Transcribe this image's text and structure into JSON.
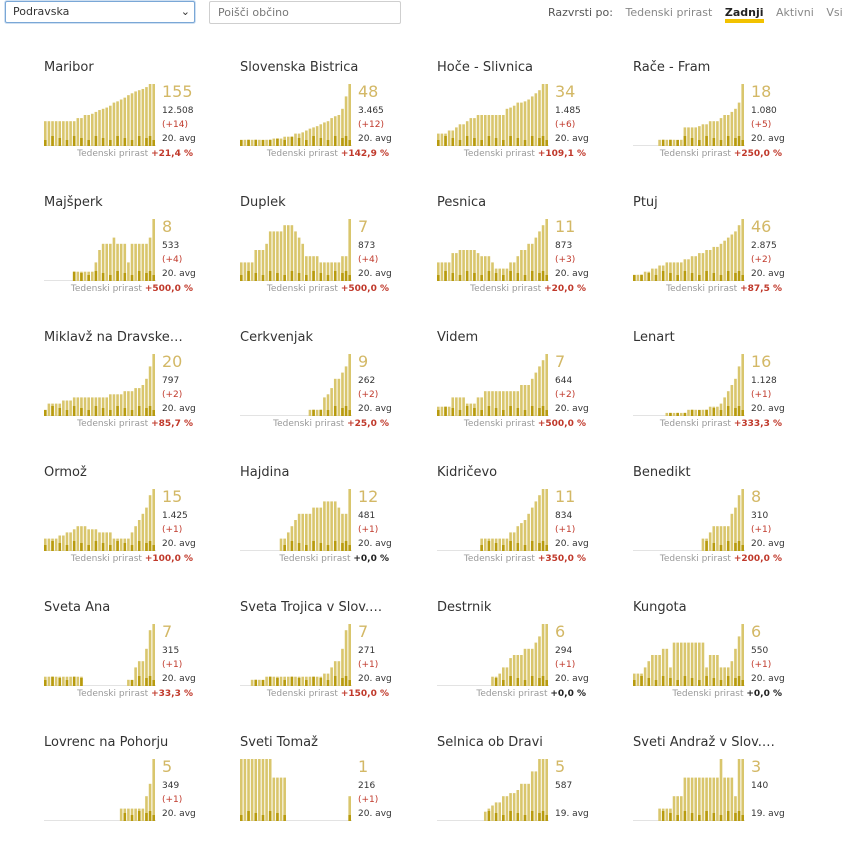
{
  "toolbar": {
    "region_select": "Podravska",
    "search_placeholder": "Poišči občino",
    "sort_label": "Razvrsti po:",
    "sort_options": [
      "Tedenski prirast",
      "Zadnji",
      "Aktivni",
      "Vsi"
    ],
    "active_sort": "Zadnji"
  },
  "growth_label": "Tedenski prirast",
  "colors": {
    "bar_light": "#d9c66d",
    "bar_dark": "#b89b0e",
    "accent": "#f2c200",
    "positive": "#c0392b"
  },
  "chart_data": [
    {
      "type": "bar",
      "title": "Maribor",
      "big": "155",
      "total": "12.508",
      "diff": "(+14)",
      "avg": "20. avg",
      "growth": "+21,4 %",
      "values": [
        40,
        40,
        40,
        40,
        40,
        40,
        40,
        40,
        40,
        45,
        45,
        50,
        50,
        52,
        55,
        58,
        60,
        62,
        65,
        70,
        72,
        75,
        78,
        82,
        85,
        88,
        90,
        92,
        95,
        100,
        100
      ]
    },
    {
      "type": "bar",
      "title": "Slovenska Bistrica",
      "big": "48",
      "total": "3.465",
      "diff": "(+12)",
      "avg": "20. avg",
      "growth": "+142,9 %",
      "values": [
        10,
        10,
        10,
        10,
        10,
        10,
        10,
        10,
        10,
        12,
        12,
        12,
        15,
        15,
        15,
        20,
        20,
        22,
        25,
        28,
        30,
        32,
        35,
        38,
        40,
        45,
        48,
        50,
        60,
        80,
        100
      ]
    },
    {
      "type": "bar",
      "title": "Hoče - Slivnica",
      "big": "34",
      "total": "1.485",
      "diff": "(+6)",
      "avg": "20. avg",
      "growth": "+109,1 %",
      "values": [
        20,
        20,
        20,
        25,
        25,
        30,
        35,
        35,
        40,
        45,
        45,
        50,
        50,
        50,
        50,
        50,
        50,
        50,
        50,
        60,
        62,
        65,
        70,
        70,
        72,
        75,
        80,
        85,
        90,
        100,
        100
      ]
    },
    {
      "type": "bar",
      "title": "Rače - Fram",
      "big": "18",
      "total": "1.080",
      "diff": "(+5)",
      "avg": "20. avg",
      "growth": "+250,0 %",
      "values": [
        0,
        0,
        0,
        0,
        0,
        0,
        0,
        10,
        10,
        10,
        10,
        10,
        10,
        10,
        30,
        30,
        30,
        30,
        32,
        35,
        35,
        40,
        40,
        40,
        45,
        50,
        50,
        55,
        60,
        70,
        100
      ]
    },
    {
      "type": "bar",
      "title": "Majšperk",
      "big": "8",
      "total": "533",
      "diff": "(+4)",
      "avg": "20. avg",
      "growth": "+500,0 %",
      "values": [
        0,
        0,
        0,
        0,
        0,
        0,
        0,
        0,
        15,
        15,
        15,
        15,
        15,
        15,
        30,
        50,
        60,
        60,
        60,
        70,
        60,
        60,
        60,
        30,
        60,
        60,
        60,
        60,
        60,
        70,
        100
      ]
    },
    {
      "type": "bar",
      "title": "Duplek",
      "big": "7",
      "total": "873",
      "diff": "(+4)",
      "avg": "20. avg",
      "growth": "+500,0 %",
      "values": [
        30,
        30,
        30,
        30,
        50,
        50,
        50,
        60,
        80,
        80,
        80,
        80,
        90,
        90,
        90,
        80,
        70,
        60,
        40,
        40,
        40,
        40,
        30,
        30,
        30,
        30,
        30,
        30,
        40,
        40,
        100
      ]
    },
    {
      "type": "bar",
      "title": "Pesnica",
      "big": "11",
      "total": "873",
      "diff": "(+3)",
      "avg": "20. avg",
      "growth": "+20,0 %",
      "values": [
        30,
        30,
        30,
        30,
        45,
        45,
        50,
        50,
        50,
        50,
        50,
        45,
        40,
        40,
        40,
        30,
        20,
        20,
        20,
        20,
        30,
        30,
        40,
        50,
        50,
        60,
        60,
        70,
        80,
        90,
        100
      ]
    },
    {
      "type": "bar",
      "title": "Ptuj",
      "big": "46",
      "total": "2.875",
      "diff": "(+2)",
      "avg": "20. avg",
      "growth": "+87,5 %",
      "values": [
        10,
        10,
        10,
        15,
        15,
        20,
        20,
        25,
        25,
        30,
        30,
        30,
        30,
        30,
        35,
        35,
        40,
        40,
        45,
        45,
        50,
        50,
        55,
        55,
        60,
        65,
        70,
        75,
        80,
        90,
        100
      ]
    },
    {
      "type": "bar",
      "title": "Miklavž na Dravske…",
      "big": "20",
      "total": "797",
      "diff": "(+2)",
      "avg": "20. avg",
      "growth": "+85,7 %",
      "values": [
        10,
        20,
        20,
        20,
        20,
        25,
        25,
        25,
        30,
        30,
        30,
        30,
        30,
        30,
        30,
        30,
        30,
        30,
        35,
        35,
        35,
        35,
        40,
        40,
        40,
        45,
        45,
        50,
        60,
        80,
        100
      ]
    },
    {
      "type": "bar",
      "title": "Cerkvenjak",
      "big": "9",
      "total": "262",
      "diff": "(+2)",
      "avg": "20. avg",
      "growth": "+25,0 %",
      "values": [
        0,
        0,
        0,
        0,
        0,
        0,
        0,
        0,
        0,
        0,
        0,
        0,
        0,
        0,
        0,
        0,
        0,
        0,
        0,
        10,
        10,
        10,
        10,
        30,
        35,
        45,
        60,
        60,
        70,
        80,
        100
      ]
    },
    {
      "type": "bar",
      "title": "Videm",
      "big": "7",
      "total": "644",
      "diff": "(+2)",
      "avg": "20. avg",
      "growth": "+500,0 %",
      "values": [
        15,
        15,
        15,
        15,
        30,
        30,
        30,
        30,
        20,
        20,
        20,
        30,
        30,
        40,
        40,
        40,
        40,
        40,
        40,
        40,
        40,
        40,
        40,
        50,
        50,
        50,
        60,
        70,
        80,
        90,
        100
      ]
    },
    {
      "type": "bar",
      "title": "Lenart",
      "big": "16",
      "total": "1.128",
      "diff": "(+1)",
      "avg": "20. avg",
      "growth": "+333,3 %",
      "values": [
        0,
        0,
        0,
        0,
        0,
        0,
        0,
        0,
        0,
        5,
        5,
        5,
        5,
        5,
        5,
        10,
        10,
        10,
        10,
        10,
        10,
        15,
        15,
        15,
        20,
        30,
        40,
        50,
        60,
        80,
        100
      ]
    },
    {
      "type": "bar",
      "title": "Ormož",
      "big": "15",
      "total": "1.425",
      "diff": "(+1)",
      "avg": "20. avg",
      "growth": "+100,0 %",
      "values": [
        20,
        20,
        20,
        20,
        25,
        25,
        30,
        30,
        35,
        40,
        40,
        40,
        35,
        35,
        35,
        30,
        30,
        30,
        30,
        20,
        20,
        20,
        20,
        20,
        30,
        40,
        50,
        60,
        70,
        90,
        100
      ]
    },
    {
      "type": "bar",
      "title": "Hajdina",
      "big": "12",
      "total": "481",
      "diff": "(+1)",
      "avg": "20. avg",
      "growth": "+0,0 %",
      "values": [
        0,
        0,
        0,
        0,
        0,
        0,
        0,
        0,
        0,
        0,
        0,
        20,
        20,
        30,
        40,
        50,
        60,
        60,
        60,
        60,
        70,
        70,
        70,
        80,
        80,
        80,
        80,
        70,
        60,
        60,
        100
      ]
    },
    {
      "type": "bar",
      "title": "Kidričevo",
      "big": "11",
      "total": "834",
      "diff": "(+1)",
      "avg": "20. avg",
      "growth": "+350,0 %",
      "values": [
        0,
        0,
        0,
        0,
        0,
        0,
        0,
        0,
        0,
        0,
        0,
        0,
        20,
        20,
        20,
        20,
        20,
        20,
        20,
        20,
        30,
        30,
        40,
        45,
        50,
        60,
        70,
        80,
        90,
        100,
        100
      ]
    },
    {
      "type": "bar",
      "title": "Benedikt",
      "big": "8",
      "total": "310",
      "diff": "(+1)",
      "avg": "20. avg",
      "growth": "+200,0 %",
      "values": [
        0,
        0,
        0,
        0,
        0,
        0,
        0,
        0,
        0,
        0,
        0,
        0,
        0,
        0,
        0,
        0,
        0,
        0,
        0,
        20,
        20,
        30,
        40,
        40,
        40,
        40,
        40,
        60,
        70,
        90,
        100
      ]
    },
    {
      "type": "bar",
      "title": "Sveta Ana",
      "big": "7",
      "total": "315",
      "diff": "(+1)",
      "avg": "20. avg",
      "growth": "+33,3 %",
      "values": [
        15,
        15,
        15,
        15,
        15,
        15,
        15,
        15,
        15,
        15,
        15,
        0,
        0,
        0,
        0,
        0,
        0,
        0,
        0,
        0,
        0,
        0,
        0,
        10,
        10,
        30,
        40,
        40,
        60,
        90,
        100
      ]
    },
    {
      "type": "bar",
      "title": "Sveta Trojica v Slov.…",
      "big": "7",
      "total": "271",
      "diff": "(+1)",
      "avg": "20. avg",
      "growth": "+150,0 %",
      "values": [
        0,
        0,
        0,
        10,
        10,
        10,
        10,
        15,
        15,
        15,
        15,
        15,
        15,
        15,
        15,
        15,
        15,
        15,
        15,
        15,
        15,
        15,
        15,
        20,
        20,
        30,
        40,
        40,
        60,
        90,
        100
      ]
    },
    {
      "type": "bar",
      "title": "Destrnik",
      "big": "6",
      "total": "294",
      "diff": "(+1)",
      "avg": "20. avg",
      "growth": "+0,0 %",
      "values": [
        0,
        0,
        0,
        0,
        0,
        0,
        0,
        0,
        0,
        0,
        0,
        0,
        0,
        0,
        0,
        15,
        15,
        20,
        30,
        30,
        45,
        50,
        50,
        50,
        60,
        60,
        60,
        70,
        80,
        100,
        100
      ]
    },
    {
      "type": "bar",
      "title": "Kungota",
      "big": "6",
      "total": "550",
      "diff": "(+1)",
      "avg": "20. avg",
      "growth": "+0,0 %",
      "values": [
        20,
        20,
        20,
        30,
        40,
        50,
        50,
        50,
        60,
        60,
        30,
        70,
        70,
        70,
        70,
        70,
        70,
        70,
        70,
        70,
        30,
        50,
        50,
        50,
        30,
        30,
        30,
        40,
        60,
        80,
        100
      ]
    },
    {
      "type": "bar",
      "title": "Lovrenc na Pohorju",
      "big": "5",
      "total": "349",
      "diff": "(+1)",
      "avg": "20. avg",
      "growth": "",
      "values": [
        0,
        0,
        0,
        0,
        0,
        0,
        0,
        0,
        0,
        0,
        0,
        0,
        0,
        0,
        0,
        0,
        0,
        0,
        0,
        0,
        0,
        20,
        20,
        20,
        20,
        20,
        20,
        20,
        40,
        60,
        100
      ]
    },
    {
      "type": "bar",
      "title": "Sveti Tomaž",
      "big": "1",
      "total": "216",
      "diff": "(+1)",
      "avg": "20. avg",
      "growth": "",
      "values": [
        100,
        100,
        100,
        100,
        100,
        100,
        100,
        100,
        100,
        70,
        70,
        70,
        70,
        0,
        0,
        0,
        0,
        0,
        0,
        0,
        0,
        0,
        0,
        0,
        0,
        0,
        0,
        0,
        0,
        0,
        40
      ]
    },
    {
      "type": "bar",
      "title": "Selnica ob Dravi",
      "big": "5",
      "total": "587",
      "diff": "",
      "avg": "19. avg",
      "growth": "",
      "values": [
        0,
        0,
        0,
        0,
        0,
        0,
        0,
        0,
        0,
        0,
        0,
        0,
        0,
        15,
        20,
        25,
        30,
        30,
        40,
        40,
        45,
        45,
        50,
        60,
        60,
        60,
        80,
        80,
        100,
        100,
        100
      ]
    },
    {
      "type": "bar",
      "title": "Sveti Andraž v Slov.…",
      "big": "3",
      "total": "140",
      "diff": "",
      "avg": "19. avg",
      "growth": "",
      "values": [
        0,
        0,
        0,
        0,
        0,
        0,
        0,
        20,
        20,
        20,
        20,
        40,
        40,
        40,
        70,
        70,
        70,
        70,
        70,
        70,
        70,
        70,
        70,
        70,
        100,
        70,
        70,
        70,
        40,
        100,
        100
      ]
    }
  ]
}
